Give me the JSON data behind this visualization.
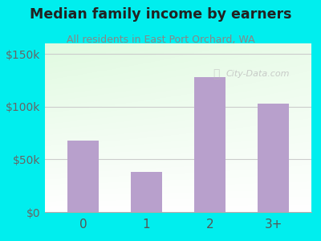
{
  "categories": [
    "0",
    "1",
    "2",
    "3+"
  ],
  "values": [
    68000,
    38000,
    128000,
    103000
  ],
  "bar_color": "#b8a0cc",
  "title": "Median family income by earners",
  "subtitle": "All residents in East Port Orchard, WA",
  "title_color": "#222222",
  "subtitle_color": "#888888",
  "outer_bg": "#00eeee",
  "yticks": [
    0,
    50000,
    100000,
    150000
  ],
  "ytick_labels": [
    "$0",
    "$50k",
    "$100k",
    "$150k"
  ],
  "ylim": [
    0,
    160000
  ],
  "watermark": "City-Data.com",
  "xlabel_color": "#555555",
  "ytick_color": "#666666",
  "grid_color": "#cccccc"
}
